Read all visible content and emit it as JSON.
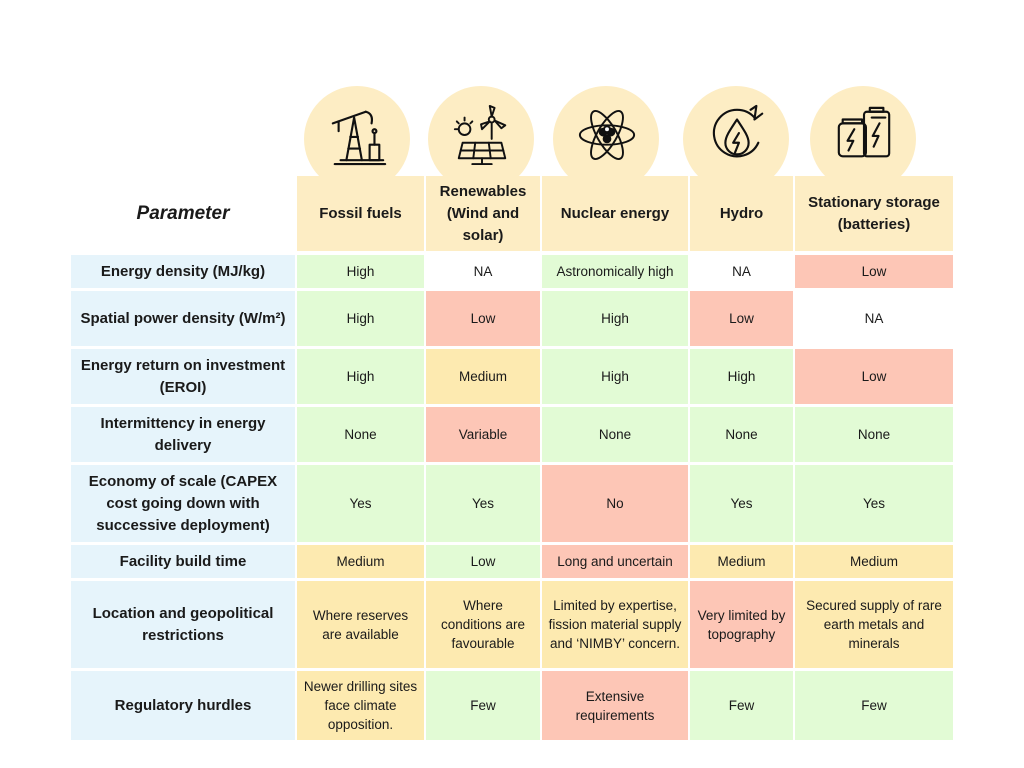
{
  "table": {
    "param_header": "Parameter",
    "columns": [
      {
        "label": "Fossil fuels",
        "icon": "oil-pump-icon"
      },
      {
        "label": "Renewables (Wind and solar)",
        "icon": "wind-solar-icon"
      },
      {
        "label": "Nuclear energy",
        "icon": "atom-icon"
      },
      {
        "label": "Hydro",
        "icon": "hydro-icon"
      },
      {
        "label": "Stationary storage (batteries)",
        "icon": "battery-icon"
      }
    ],
    "rows": [
      {
        "param": "Energy density (MJ/kg)",
        "cells": [
          "High",
          "NA",
          "Astronomically high",
          "NA",
          "Low"
        ],
        "status": [
          "green",
          "white",
          "green",
          "white",
          "red"
        ]
      },
      {
        "param": "Spatial power density (W/m²)",
        "cells": [
          "High",
          "Low",
          "High",
          "Low",
          "NA"
        ],
        "status": [
          "green",
          "red",
          "green",
          "red",
          "white"
        ]
      },
      {
        "param": "Energy return on investment (EROI)",
        "cells": [
          "High",
          "Medium",
          "High",
          "High",
          "Low"
        ],
        "status": [
          "green",
          "yellow",
          "green",
          "green",
          "red"
        ]
      },
      {
        "param": "Intermittency in energy delivery",
        "cells": [
          "None",
          "Variable",
          "None",
          "None",
          "None"
        ],
        "status": [
          "green",
          "red",
          "green",
          "green",
          "green"
        ]
      },
      {
        "param": "Economy of scale (CAPEX cost going down with successive deployment)",
        "cells": [
          "Yes",
          "Yes",
          "No",
          "Yes",
          "Yes"
        ],
        "status": [
          "green",
          "green",
          "red",
          "green",
          "green"
        ]
      },
      {
        "param": "Facility build time",
        "cells": [
          "Medium",
          "Low",
          "Long and uncertain",
          "Medium",
          "Medium"
        ],
        "status": [
          "yellow",
          "green",
          "red",
          "yellow",
          "yellow"
        ]
      },
      {
        "param": "Location and geopolitical restrictions",
        "cells": [
          "Where reserves are available",
          "Where conditions are favourable",
          "Limited by expertise, fission material supply and ‘NIMBY’ concern.",
          "Very limited by topography",
          "Secured supply of rare earth metals and minerals"
        ],
        "status": [
          "yellow",
          "yellow",
          "yellow",
          "red",
          "yellow"
        ]
      },
      {
        "param": "Regulatory hurdles",
        "cells": [
          "Newer drilling sites face climate opposition.",
          "Few",
          "Extensive requirements",
          "Few",
          "Few"
        ],
        "status": [
          "yellow",
          "green",
          "red",
          "green",
          "green"
        ]
      }
    ]
  },
  "colors": {
    "header_bg": "#fdedc4",
    "param_bg": "#e6f4fb",
    "green": "#e2fbd5",
    "yellow": "#fdeab0",
    "red": "#fdc6b6",
    "white": "#ffffff"
  }
}
